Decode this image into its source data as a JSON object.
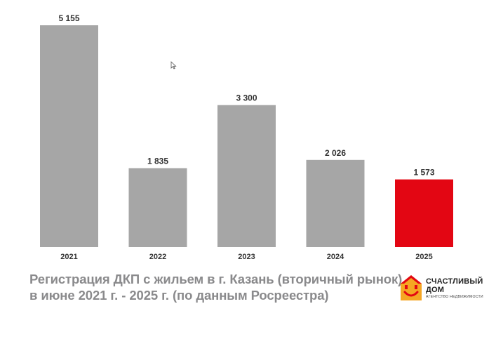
{
  "chart_data": {
    "type": "bar",
    "categories": [
      "2021",
      "2022",
      "2023",
      "2024",
      "2025"
    ],
    "values": [
      5155,
      1835,
      3300,
      2026,
      1573
    ],
    "value_labels": [
      "5 155",
      "1 835",
      "3 300",
      "2 026",
      "1 573"
    ],
    "ylim": [
      0,
      5155
    ],
    "grid": false,
    "legend": "none",
    "colors": {
      "default": "#a6a6a6",
      "highlight": "#e30613",
      "highlight_index": 4,
      "label": "#333333"
    }
  },
  "caption": {
    "line1": "Регистрация ДКП с жильем в г. Казань (вторичный рынок),",
    "line2": "в июне 2021 г. - 2025 г. (по данным Росреестра)"
  },
  "logo": {
    "line1": "СЧАСТЛИВЫЙ",
    "line2": "ДОМ",
    "line3": "АГЕНТСТВО НЕДВИЖИМОСТИ",
    "icon": "house-smile-icon",
    "colors": {
      "roof": "#e30613",
      "body": "#f5a623",
      "smile": "#e30613"
    }
  },
  "cursor_icon": "mouse-pointer-icon"
}
